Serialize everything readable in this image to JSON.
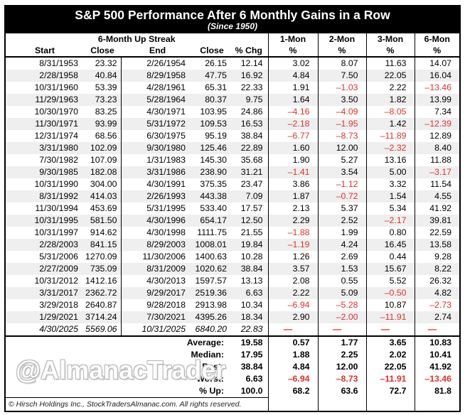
{
  "colors": {
    "negative": "#e0312a",
    "stripe": "#efefef",
    "band_bg": "#000000",
    "band_fg": "#ffffff",
    "watermark_outline": "#b5b5b5"
  },
  "chart_data": {
    "type": "table",
    "title": "S&P 500 Performance After 6 Monthly Gains in a Row",
    "subtitle": "(Since 1950)",
    "group_header": "6-Month Up Streak",
    "columns": [
      "Start",
      "Close",
      "End",
      "Close",
      "% Chg"
    ],
    "month_headers": [
      {
        "label": "1-Mon",
        "sub": "%"
      },
      {
        "label": "2-Mon",
        "sub": "%"
      },
      {
        "label": "3-Mon",
        "sub": "%"
      },
      {
        "label": "6-Mon",
        "sub": "%"
      }
    ],
    "rows": [
      {
        "start": "8/31/1953",
        "close1": "23.32",
        "end": "2/26/1954",
        "close2": "26.15",
        "pct": "12.14",
        "m1": "3.02",
        "m2": "8.07",
        "m3": "11.63",
        "m6": "14.07"
      },
      {
        "start": "2/28/1958",
        "close1": "40.84",
        "end": "8/29/1958",
        "close2": "47.75",
        "pct": "16.92",
        "m1": "4.84",
        "m2": "7.50",
        "m3": "22.05",
        "m6": "16.04"
      },
      {
        "start": "10/31/1960",
        "close1": "53.39",
        "end": "4/28/1961",
        "close2": "65.31",
        "pct": "22.33",
        "m1": "1.91",
        "m2": "–1.03",
        "m3": "2.22",
        "m6": "–13.46"
      },
      {
        "start": "11/29/1963",
        "close1": "73.23",
        "end": "5/28/1964",
        "close2": "80.37",
        "pct": "9.75",
        "m1": "1.64",
        "m2": "3.50",
        "m3": "1.82",
        "m6": "13.99"
      },
      {
        "start": "10/30/1970",
        "close1": "83.25",
        "end": "4/30/1971",
        "close2": "103.95",
        "pct": "24.86",
        "m1": "–4.16",
        "m2": "–4.09",
        "m3": "–8.05",
        "m6": "7.34"
      },
      {
        "start": "11/30/1971",
        "close1": "93.99",
        "end": "5/31/1972",
        "close2": "109.53",
        "pct": "16.53",
        "m1": "–2.18",
        "m2": "–1.95",
        "m3": "1.42",
        "m6": "–12.39"
      },
      {
        "start": "12/31/1974",
        "close1": "68.56",
        "end": "6/30/1975",
        "close2": "95.19",
        "pct": "38.84",
        "m1": "–6.77",
        "m2": "–8.73",
        "m3": "–11.89",
        "m6": "12.89"
      },
      {
        "start": "3/31/1980",
        "close1": "102.09",
        "end": "9/30/1980",
        "close2": "125.46",
        "pct": "22.89",
        "m1": "1.60",
        "m2": "12.00",
        "m3": "–2.32",
        "m6": "8.40"
      },
      {
        "start": "7/30/1982",
        "close1": "107.09",
        "end": "1/31/1983",
        "close2": "145.30",
        "pct": "35.68",
        "m1": "1.90",
        "m2": "5.27",
        "m3": "13.16",
        "m6": "11.88"
      },
      {
        "start": "9/30/1985",
        "close1": "182.08",
        "end": "3/31/1986",
        "close2": "238.90",
        "pct": "31.21",
        "m1": "–1.41",
        "m2": "3.54",
        "m3": "5.00",
        "m6": "–3.17"
      },
      {
        "start": "10/31/1990",
        "close1": "304.00",
        "end": "4/30/1991",
        "close2": "375.35",
        "pct": "23.47",
        "m1": "3.86",
        "m2": "–1.12",
        "m3": "3.32",
        "m6": "11.54"
      },
      {
        "start": "8/31/1992",
        "close1": "414.03",
        "end": "2/26/1993",
        "close2": "443.38",
        "pct": "7.09",
        "m1": "1.87",
        "m2": "–0.72",
        "m3": "1.54",
        "m6": "4.55"
      },
      {
        "start": "11/30/1994",
        "close1": "453.69",
        "end": "5/31/1995",
        "close2": "533.40",
        "pct": "17.57",
        "m1": "2.13",
        "m2": "5.37",
        "m3": "5.34",
        "m6": "41.92"
      },
      {
        "start": "10/31/1995",
        "close1": "581.50",
        "end": "4/30/1996",
        "close2": "654.17",
        "pct": "12.50",
        "m1": "2.29",
        "m2": "2.52",
        "m3": "–2.17",
        "m6": "39.81"
      },
      {
        "start": "10/31/1997",
        "close1": "914.62",
        "end": "4/30/1998",
        "close2": "1111.75",
        "pct": "21.55",
        "m1": "–1.88",
        "m2": "1.99",
        "m3": "0.80",
        "m6": "22.59"
      },
      {
        "start": "2/28/2003",
        "close1": "841.15",
        "end": "8/29/2003",
        "close2": "1008.01",
        "pct": "19.84",
        "m1": "–1.19",
        "m2": "4.24",
        "m3": "16.45",
        "m6": "13.58"
      },
      {
        "start": "5/31/2006",
        "close1": "1270.09",
        "end": "11/30/2006",
        "close2": "1400.63",
        "pct": "10.28",
        "m1": "1.26",
        "m2": "2.69",
        "m3": "0.44",
        "m6": "9.28"
      },
      {
        "start": "2/27/2009",
        "close1": "735.09",
        "end": "8/31/2009",
        "close2": "1020.62",
        "pct": "38.84",
        "m1": "3.57",
        "m2": "1.53",
        "m3": "15.67",
        "m6": "8.22"
      },
      {
        "start": "10/31/2012",
        "close1": "1412.16",
        "end": "4/30/2013",
        "close2": "1597.57",
        "pct": "13.13",
        "m1": "2.08",
        "m2": "0.55",
        "m3": "5.52",
        "m6": "26.32"
      },
      {
        "start": "3/31/2017",
        "close1": "2362.72",
        "end": "9/29/2017",
        "close2": "2519.36",
        "pct": "6.63",
        "m1": "2.22",
        "m2": "5.09",
        "m3": "–0.50",
        "m6": "4.82"
      },
      {
        "start": "3/29/2018",
        "close1": "2640.87",
        "end": "9/28/2018",
        "close2": "2913.98",
        "pct": "10.34",
        "m1": "–6.94",
        "m2": "–5.28",
        "m3": "10.87",
        "m6": "–2.73"
      },
      {
        "start": "1/29/2021",
        "close1": "3714.24",
        "end": "7/30/2021",
        "close2": "4395.26",
        "pct": "18.34",
        "m1": "2.90",
        "m2": "–2.00",
        "m3": "–11.91",
        "m6": "2.74"
      },
      {
        "start": "4/30/2025",
        "close1": "5569.06",
        "end": "10/31/2025",
        "close2": "6840.20",
        "pct": "22.83",
        "m1": "—",
        "m2": "—",
        "m3": "—",
        "m6": "—",
        "italic": true
      }
    ],
    "summary": [
      {
        "label": "Average:",
        "pct": "19.58",
        "m1": "0.57",
        "m2": "1.77",
        "m3": "3.65",
        "m6": "10.83"
      },
      {
        "label": "Median:",
        "pct": "17.95",
        "m1": "1.88",
        "m2": "2.25",
        "m3": "2.02",
        "m6": "10.41"
      },
      {
        "label": "Best:",
        "pct": "38.84",
        "m1": "4.84",
        "m2": "12.00",
        "m3": "22.05",
        "m6": "41.92"
      },
      {
        "label": "Worst:",
        "pct": "6.63",
        "m1": "–6.94",
        "m2": "–8.73",
        "m3": "–11.91",
        "m6": "–13.46"
      },
      {
        "label": "% Up:",
        "pct": "100.0",
        "m1": "68.2",
        "m2": "63.6",
        "m3": "72.7",
        "m6": "81.8"
      }
    ],
    "watermark": "@AlmanacTrader",
    "footnote": "© Hirsch Holdings Inc., StockTradersAlmanac.com. All rights reserved."
  }
}
